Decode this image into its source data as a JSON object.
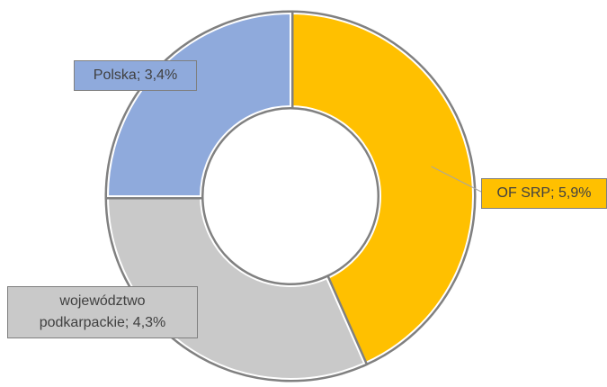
{
  "chart_data": {
    "type": "donut",
    "values": [
      5.9,
      4.3,
      3.4
    ],
    "value_labels": [
      "OF SRP; 5,9%",
      "województwo podkarpackie; 4,3%",
      "Polska; 3,4%"
    ],
    "colors": [
      "#FFC000",
      "#C9C9C9",
      "#8FAADC"
    ]
  }
}
